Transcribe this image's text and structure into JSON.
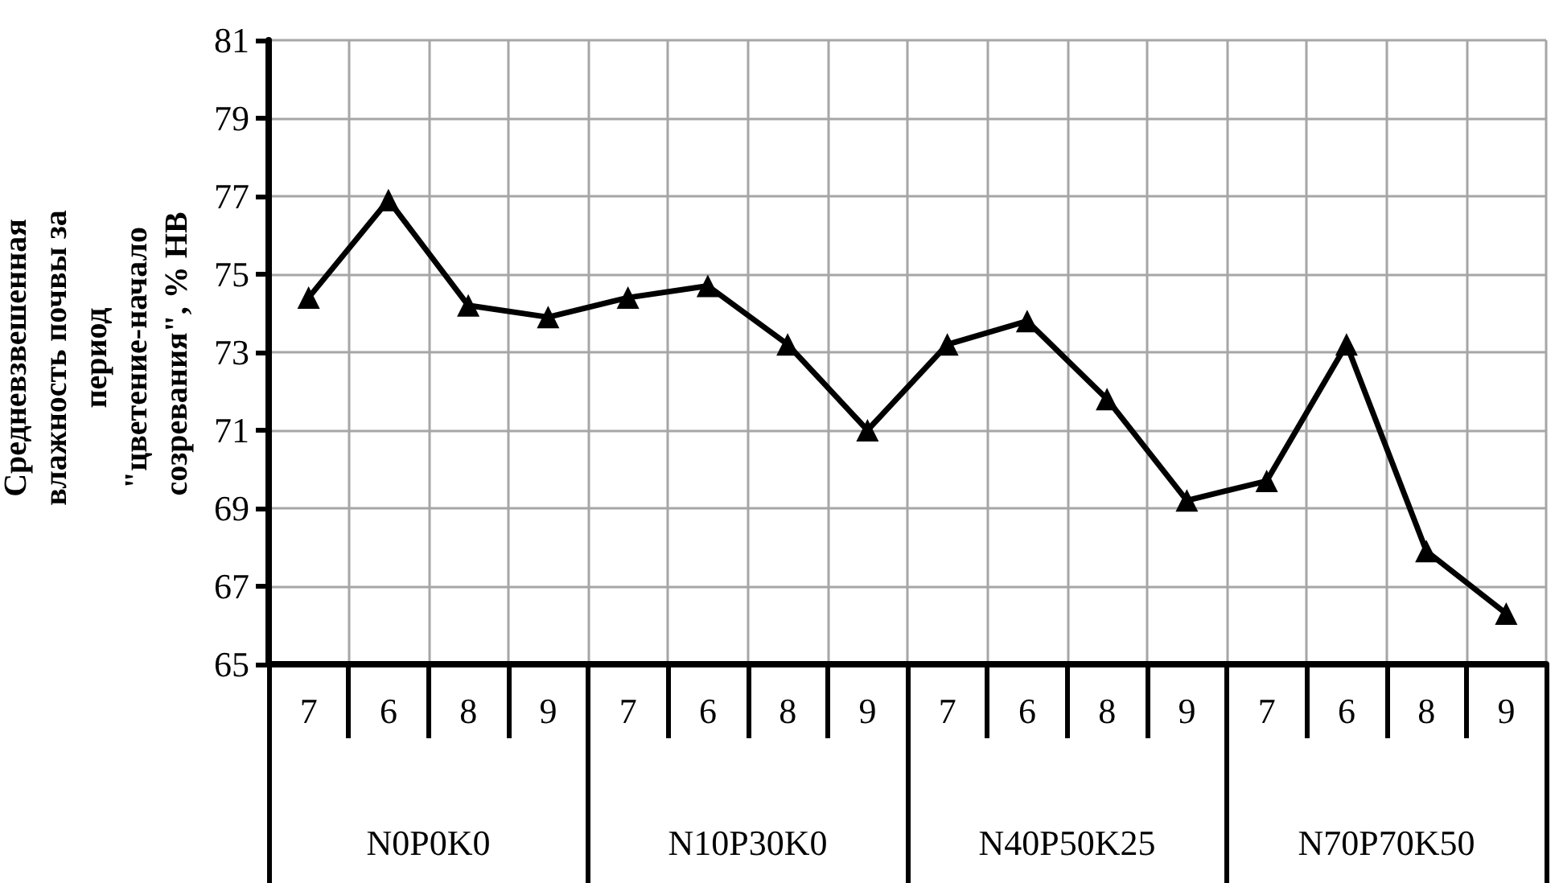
{
  "chart_data": {
    "type": "line",
    "ylabel": "Средневзвешенная влажность почвы за период \"цветение-начало созревания\", % НВ",
    "categories": [
      "7",
      "6",
      "8",
      "9",
      "7",
      "6",
      "8",
      "9",
      "7",
      "6",
      "8",
      "9",
      "7",
      "6",
      "8",
      "9"
    ],
    "annotations": [
      "N0P0K0",
      "N10P30K0",
      "N40P50K25",
      "N70P70K50"
    ],
    "series": [
      {
        "color": "#000000",
        "values": [
          74.4,
          76.9,
          74.2,
          73.9,
          74.4,
          74.7,
          73.2,
          71.0,
          73.2,
          73.8,
          71.8,
          69.2,
          69.7,
          73.2,
          67.9,
          66.3
        ]
      }
    ],
    "ylim": [
      65,
      81
    ],
    "yticks": [
      65,
      67,
      69,
      71,
      73,
      75,
      77,
      79,
      81
    ],
    "grid": true,
    "marker": "triangle",
    "line_style": "solid"
  }
}
